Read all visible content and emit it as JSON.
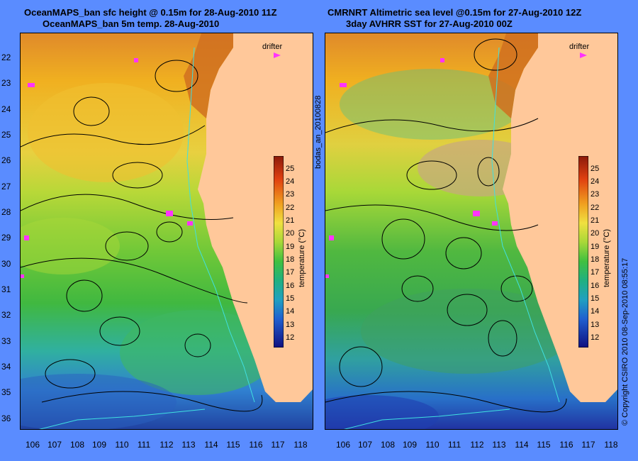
{
  "left_panel": {
    "title_line1": "OceanMAPS_ban sfc height @ 0.15m for 28-Aug-2010 11Z",
    "title_line2": "OceanMAPS_ban 5m temp. 28-Aug-2010",
    "drifter_label": "drifter",
    "colorbar_label": "temperature (°C)"
  },
  "right_panel": {
    "title_line1": "CMRNRT Altimetric sea level  @0.15m  for 27-Aug-2010 12Z",
    "title_line2": "3day AVHRR SST for 27-Aug-2010 00Z",
    "drifter_label": "drifter",
    "colorbar_label": "temperature (°C)"
  },
  "side_text_middle": "bodas_an_20100828",
  "side_text_right": "© Copyright CSIRO 2010   08-Sep-2010 08:55:17",
  "latitudes": [
    "22",
    "23",
    "24",
    "25",
    "26",
    "27",
    "28",
    "29",
    "30",
    "31",
    "32",
    "33",
    "34",
    "35",
    "36"
  ],
  "longitudes": [
    "106",
    "107",
    "108",
    "109",
    "110",
    "111",
    "112",
    "113",
    "114",
    "115",
    "116",
    "117",
    "118"
  ],
  "colorbar_ticks": [
    "25",
    "24",
    "23",
    "22",
    "21",
    "20",
    "19",
    "18",
    "17",
    "16",
    "15",
    "14",
    "13",
    "12"
  ],
  "colors": {
    "background": "#5a8cff",
    "land": "#ffc89a",
    "contour": "#000000",
    "isobath": "#40e0e0",
    "drifter": "#ff33ff"
  }
}
